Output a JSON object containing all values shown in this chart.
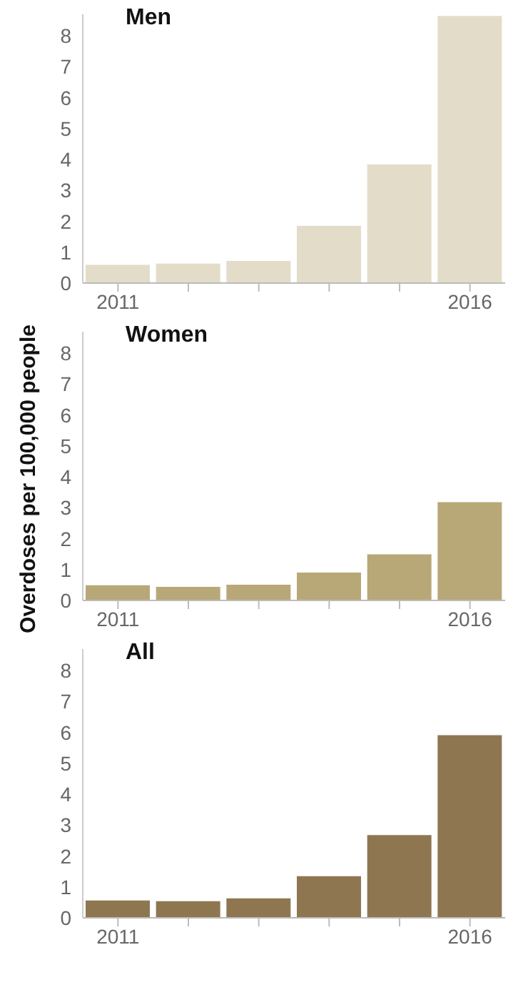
{
  "chart_data": [
    {
      "type": "bar",
      "title": "Men",
      "categories": [
        "2011",
        null,
        null,
        null,
        null,
        "2016"
      ],
      "values": [
        0.59,
        0.63,
        0.72,
        1.85,
        3.84,
        8.65
      ],
      "color": "#e3dcc8",
      "ylim": [
        0,
        8.7
      ],
      "yticks": [
        0,
        1,
        2,
        3,
        4,
        5,
        6,
        7,
        8
      ],
      "grid": false
    },
    {
      "type": "bar",
      "title": "Women",
      "ylabel": "Overdoses per 100,000 people",
      "categories": [
        "2011",
        null,
        null,
        null,
        null,
        "2016"
      ],
      "values": [
        0.49,
        0.44,
        0.51,
        0.9,
        1.49,
        3.18
      ],
      "color": "#b8a878",
      "ylim": [
        0,
        8.7
      ],
      "yticks": [
        0,
        1,
        2,
        3,
        4,
        5,
        6,
        7,
        8
      ],
      "grid": false
    },
    {
      "type": "bar",
      "title": "All",
      "categories": [
        "2011",
        null,
        null,
        null,
        null,
        "2016"
      ],
      "values": [
        0.56,
        0.54,
        0.63,
        1.35,
        2.68,
        5.91
      ],
      "color": "#8e7750",
      "ylim": [
        0,
        8.7
      ],
      "yticks": [
        0,
        1,
        2,
        3,
        4,
        5,
        6,
        7,
        8
      ],
      "grid": false
    }
  ]
}
